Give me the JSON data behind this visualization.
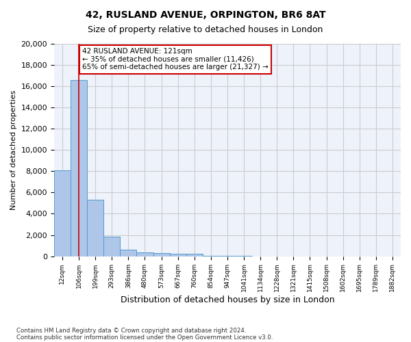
{
  "title1": "42, RUSLAND AVENUE, ORPINGTON, BR6 8AT",
  "title2": "Size of property relative to detached houses in London",
  "xlabel": "Distribution of detached houses by size in London",
  "ylabel": "Number of detached properties",
  "bar_values": [
    8100,
    16600,
    5300,
    1850,
    650,
    350,
    275,
    200,
    200,
    50,
    20,
    10,
    5,
    3,
    2,
    1,
    0,
    0,
    0,
    0,
    0
  ],
  "categories": [
    "12sqm",
    "106sqm",
    "199sqm",
    "293sqm",
    "386sqm",
    "480sqm",
    "573sqm",
    "667sqm",
    "760sqm",
    "854sqm",
    "947sqm",
    "1041sqm",
    "1134sqm",
    "1228sqm",
    "1321sqm",
    "1415sqm",
    "1508sqm",
    "1602sqm",
    "1695sqm",
    "1789sqm",
    "1882sqm"
  ],
  "bar_color": "#aec6e8",
  "bar_edge_color": "#5599cc",
  "vline_x": 1.0,
  "vline_color": "#cc0000",
  "annotation_text": "42 RUSLAND AVENUE: 121sqm\n← 35% of detached houses are smaller (11,426)\n65% of semi-detached houses are larger (21,327) →",
  "annotation_box_color": "#cc0000",
  "ylim": [
    0,
    20000
  ],
  "yticks": [
    0,
    2000,
    4000,
    6000,
    8000,
    10000,
    12000,
    14000,
    16000,
    18000,
    20000
  ],
  "grid_color": "#cccccc",
  "background_color": "#eef2fb",
  "footer1": "Contains HM Land Registry data © Crown copyright and database right 2024.",
  "footer2": "Contains public sector information licensed under the Open Government Licence v3.0."
}
